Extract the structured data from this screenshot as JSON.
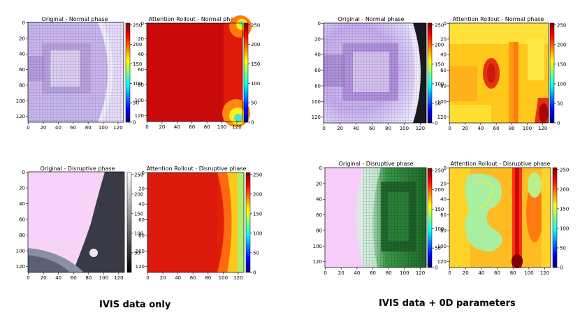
{
  "chart_data": [
    {
      "type": "heatmap",
      "group": "left",
      "row": 0,
      "kind": "original",
      "title": "Original - Normal phase",
      "xticks": [
        "0",
        "20",
        "40",
        "60",
        "80",
        "100",
        "120"
      ],
      "yticks": [
        "0",
        "20",
        "40",
        "60",
        "80",
        "100",
        "120"
      ],
      "colorbar": {
        "ticks": [
          "0",
          "50",
          "100",
          "150",
          "200",
          "250"
        ],
        "range": [
          0,
          255
        ]
      }
    },
    {
      "type": "heatmap",
      "group": "left",
      "row": 0,
      "kind": "attention",
      "title": "Attention Rollout - Normal phase",
      "xticks": [
        "0",
        "20",
        "40",
        "60",
        "80",
        "100",
        "120"
      ],
      "yticks": [
        "0",
        "20",
        "40",
        "60",
        "80",
        "100",
        "120"
      ],
      "colorbar": {
        "ticks": [
          "0",
          "50",
          "100",
          "150",
          "200",
          "250"
        ],
        "range": [
          0,
          255
        ]
      }
    },
    {
      "type": "heatmap",
      "group": "left",
      "row": 1,
      "kind": "original",
      "title": "Original - Disruptive phase",
      "xticks": [
        "0",
        "20",
        "40",
        "60",
        "80",
        "100",
        "120"
      ],
      "yticks": [
        "0",
        "20",
        "40",
        "60",
        "80",
        "100",
        "120"
      ],
      "colorbar": {
        "ticks": [
          "50",
          "100",
          "150",
          "200",
          "250"
        ],
        "range": [
          0,
          255
        ]
      }
    },
    {
      "type": "heatmap",
      "group": "left",
      "row": 1,
      "kind": "attention",
      "title": "Attention Rollout - Disruptive phase",
      "xticks": [
        "0",
        "20",
        "40",
        "60",
        "80",
        "100",
        "120"
      ],
      "yticks": [
        "0",
        "20",
        "40",
        "60",
        "80",
        "100",
        "120"
      ],
      "colorbar": {
        "ticks": [
          "0",
          "50",
          "100",
          "150",
          "200",
          "250"
        ],
        "range": [
          0,
          255
        ]
      }
    },
    {
      "type": "heatmap",
      "group": "right",
      "row": 0,
      "kind": "original",
      "title": "Original - Normal phase",
      "xticks": [
        "0",
        "20",
        "40",
        "60",
        "80",
        "100",
        "120"
      ],
      "yticks": [
        "0",
        "20",
        "40",
        "60",
        "80",
        "100",
        "120"
      ],
      "colorbar": {
        "ticks": [
          "0",
          "50",
          "100",
          "150",
          "200",
          "250"
        ],
        "range": [
          0,
          255
        ]
      }
    },
    {
      "type": "heatmap",
      "group": "right",
      "row": 0,
      "kind": "attention",
      "title": "Attention Rollout - Normal phase",
      "xticks": [
        "0",
        "20",
        "40",
        "60",
        "80",
        "100",
        "120"
      ],
      "yticks": [
        "0",
        "20",
        "40",
        "60",
        "80",
        "100",
        "120"
      ],
      "colorbar": {
        "ticks": [
          "0",
          "50",
          "100",
          "150",
          "200",
          "250"
        ],
        "range": [
          0,
          255
        ]
      }
    },
    {
      "type": "heatmap",
      "group": "right",
      "row": 1,
      "kind": "original",
      "title": "Original - Disruptive phase",
      "xticks": [
        "0",
        "20",
        "40",
        "60",
        "80",
        "100",
        "120"
      ],
      "yticks": [
        "0",
        "20",
        "40",
        "60",
        "80",
        "100",
        "120"
      ],
      "colorbar": {
        "ticks": [
          "0",
          "50",
          "100",
          "150",
          "200",
          "250"
        ],
        "range": [
          0,
          255
        ]
      }
    },
    {
      "type": "heatmap",
      "group": "right",
      "row": 1,
      "kind": "attention",
      "title": "Attention Rollout - Disruptive phase",
      "xticks": [
        "0",
        "20",
        "40",
        "60",
        "80",
        "100",
        "120"
      ],
      "yticks": [
        "0",
        "20",
        "40",
        "60",
        "80",
        "100",
        "120"
      ],
      "colorbar": {
        "ticks": [
          "0",
          "50",
          "100",
          "150",
          "200",
          "250"
        ],
        "range": [
          0,
          255
        ]
      }
    }
  ],
  "captions": {
    "left": "IVIS data only",
    "right": "IVIS data + 0D parameters"
  },
  "colormap": [
    "#00007f",
    "#0000ff",
    "#007fff",
    "#00ffff",
    "#7fff7f",
    "#ffff00",
    "#ff7f00",
    "#ff0000",
    "#7f0000"
  ]
}
